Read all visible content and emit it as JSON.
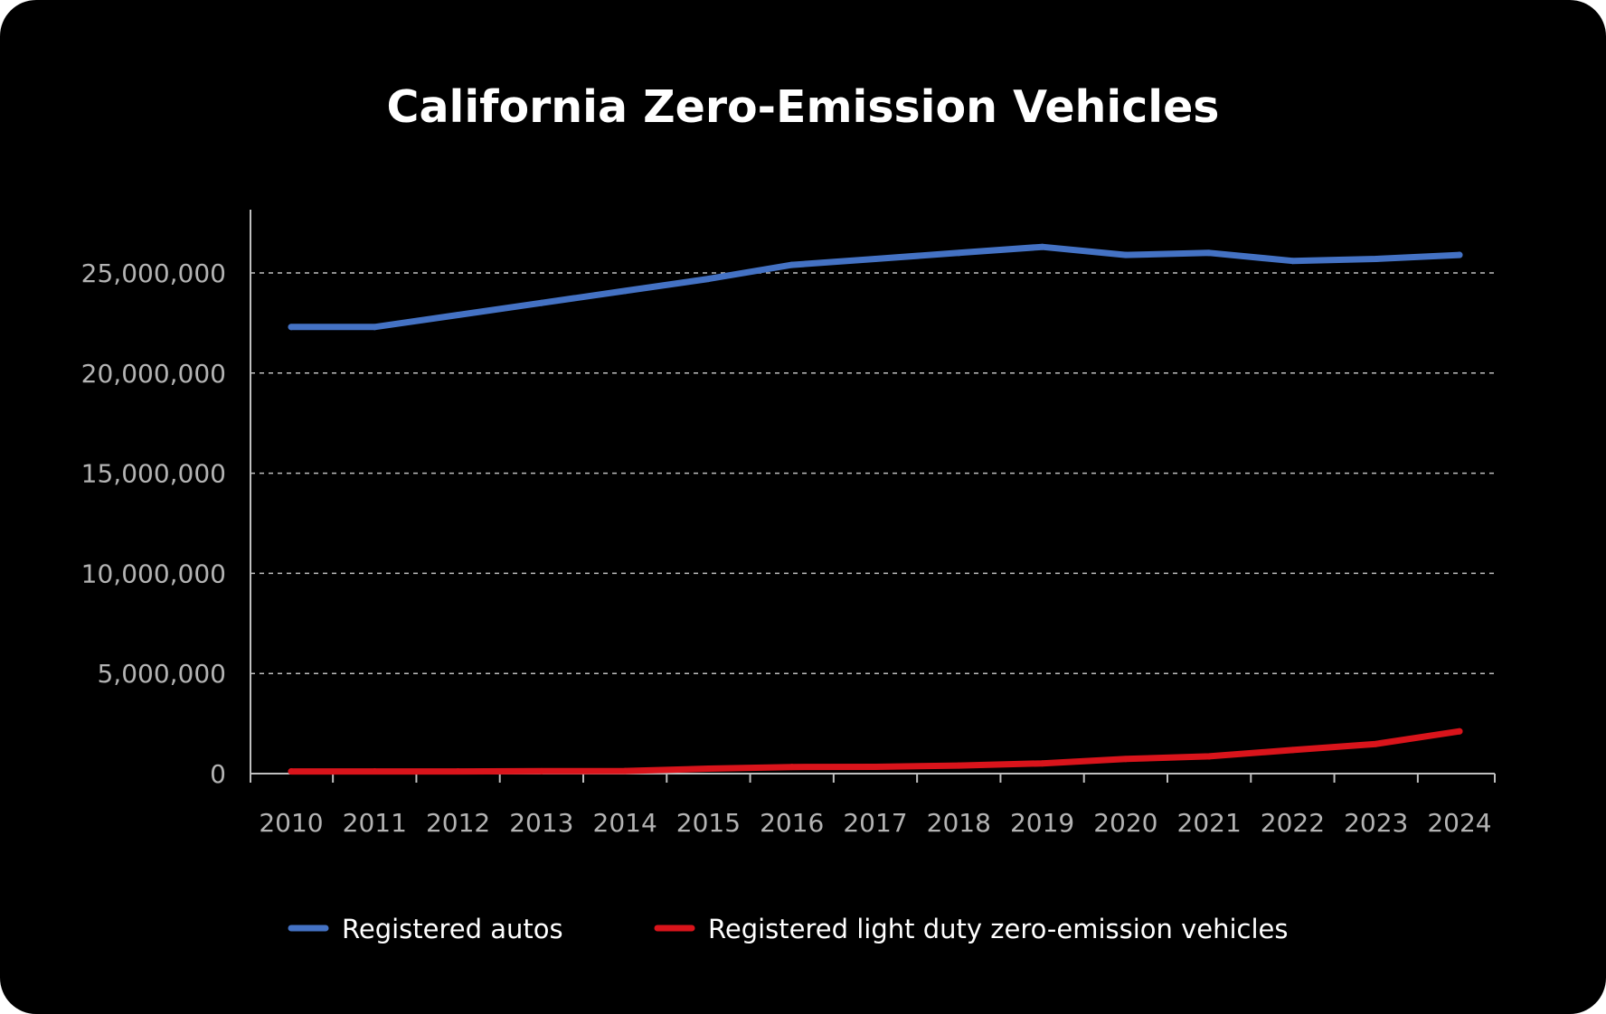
{
  "chart_data": {
    "type": "line",
    "title": "California Zero-Emission Vehicles",
    "xlabel": "",
    "ylabel": "",
    "categories": [
      "2010",
      "2011",
      "2012",
      "2013",
      "2014",
      "2015",
      "2016",
      "2017",
      "2018",
      "2019",
      "2020",
      "2021",
      "2022",
      "2023",
      "2024"
    ],
    "ylim": [
      0,
      28000000
    ],
    "yticks": [
      0,
      5000000,
      10000000,
      15000000,
      20000000,
      25000000
    ],
    "ytick_labels": [
      "0",
      "5,000,000",
      "10,000,000",
      "15,000,000",
      "20,000,000",
      "25,000,000"
    ],
    "grid": "horizontal dashed",
    "legend_position": "bottom",
    "series": [
      {
        "name": "Registered autos",
        "color": "#4472c4",
        "values": [
          22300000,
          22300000,
          22900000,
          23500000,
          24100000,
          24700000,
          25400000,
          25700000,
          26000000,
          26300000,
          25900000,
          26000000,
          25600000,
          25700000,
          25900000
        ]
      },
      {
        "name": "Registered light duty zero-emission vehicles",
        "color": "#d9141b",
        "values": [
          110000,
          110000,
          110000,
          120000,
          130000,
          250000,
          330000,
          340000,
          400000,
          510000,
          730000,
          860000,
          1180000,
          1480000,
          2110000
        ]
      }
    ]
  }
}
